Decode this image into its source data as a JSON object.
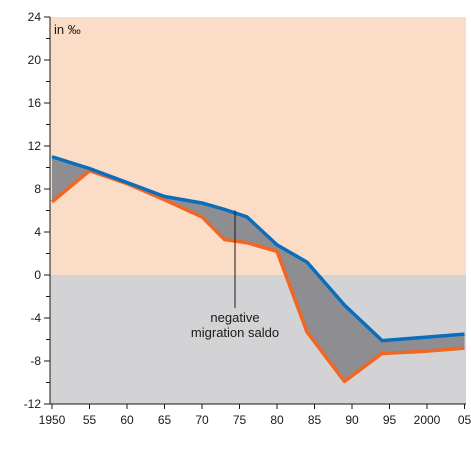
{
  "chart_data": {
    "type": "line",
    "unit_label": "in ‰",
    "ylim": [
      -12,
      24
    ],
    "xlim": [
      1950,
      2005
    ],
    "y_ticks": [
      -12,
      -8,
      -4,
      0,
      4,
      8,
      12,
      16,
      20,
      24
    ],
    "y_tick_labels": [
      "-12",
      "-8",
      "-4",
      "0",
      "4",
      "8",
      "12",
      "16",
      "20",
      "24"
    ],
    "x_ticks": [
      1950,
      1955,
      1960,
      1965,
      1970,
      1975,
      1980,
      1985,
      1990,
      1995,
      2000,
      2005
    ],
    "x_tick_labels": [
      "1950",
      "55",
      "60",
      "65",
      "70",
      "75",
      "80",
      "85",
      "90",
      "95",
      "2000",
      "05"
    ],
    "positive_region_color": "#fbdcc6",
    "negative_region_color": "#d3d3d6",
    "gap_fill_color": "#8e8e92",
    "series": [
      {
        "color": "#0a6ebd",
        "x": [
          1950,
          1955,
          1960,
          1965,
          1970,
          1973,
          1976,
          1980,
          1984,
          1989,
          1994,
          1999.5,
          2005
        ],
        "values": [
          11.0,
          9.9,
          8.6,
          7.3,
          6.7,
          6.1,
          5.4,
          2.8,
          1.2,
          -2.8,
          -6.1,
          -5.8,
          -5.5
        ]
      },
      {
        "color": "#f26522",
        "x": [
          1950,
          1955,
          1960,
          1965,
          1970,
          1973,
          1976,
          1980,
          1984,
          1989,
          1994,
          1999.5,
          2005
        ],
        "values": [
          6.8,
          9.7,
          8.5,
          7.0,
          5.4,
          3.3,
          3.0,
          2.2,
          -5.3,
          -9.9,
          -7.3,
          -7.1,
          -6.8
        ]
      }
    ],
    "annotation": {
      "lines": [
        "negative",
        "migration saldo"
      ],
      "point_x": 1974,
      "point_y": 6.0
    }
  }
}
